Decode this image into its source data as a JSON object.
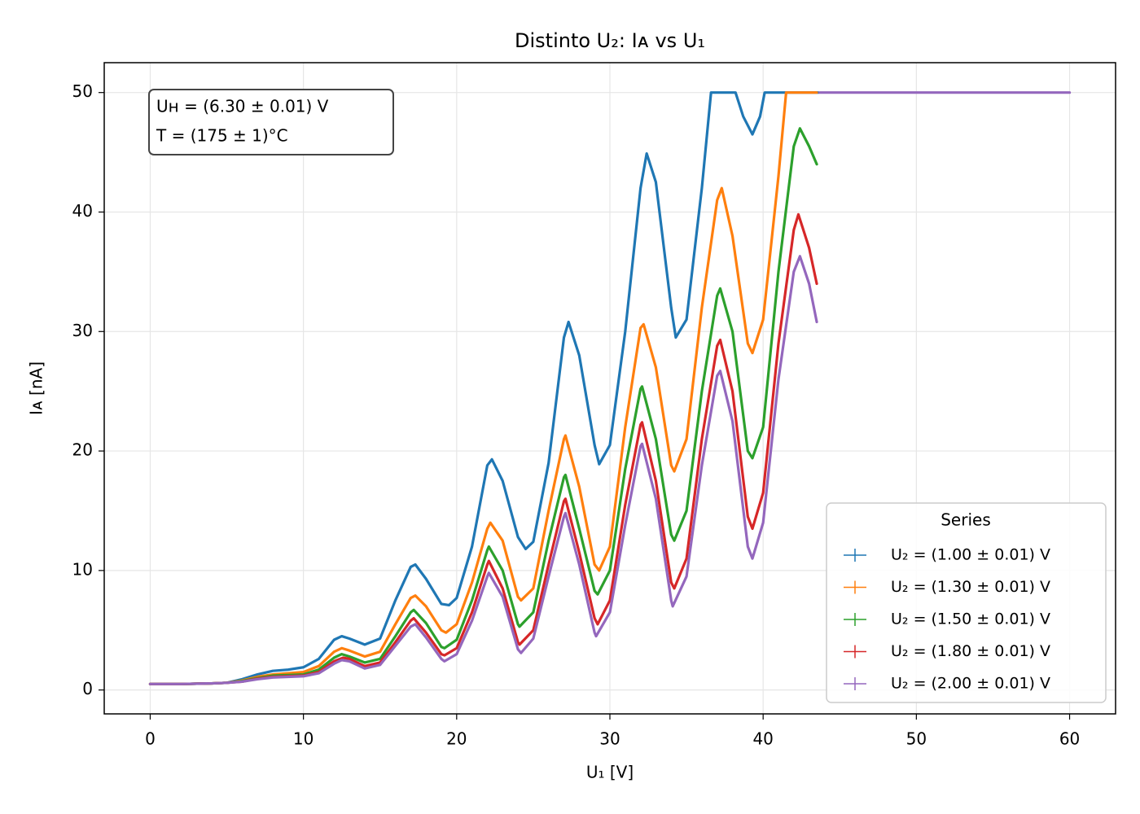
{
  "chart_data": {
    "type": "line",
    "title": "Distinto U₂: Iᴀ vs U₁",
    "x_label": "U₁ [V]",
    "y_label": "Iᴀ [nA]",
    "annotation": [
      "Uʜ = (6.30 ± 0.01) V",
      "T = (175 ± 1)°C"
    ],
    "legend_title": "Series",
    "legend_position": "lower right",
    "grid": true,
    "xlim": [
      -3,
      63
    ],
    "ylim": [
      -2,
      52.5
    ],
    "xticks": [
      0,
      10,
      20,
      30,
      40,
      50,
      60
    ],
    "yticks": [
      0,
      10,
      20,
      30,
      40,
      50
    ],
    "series": [
      {
        "name": "U₂ = (1.00 ± 0.01) V",
        "color": "#1f77b4",
        "x": [
          0,
          2,
          4,
          5,
          6,
          7,
          8,
          9,
          10,
          11,
          12,
          12.5,
          13,
          14,
          15,
          16,
          17,
          17.3,
          18,
          19,
          19.5,
          20,
          21,
          22,
          22.3,
          23,
          24,
          24.5,
          25,
          26,
          27,
          27.3,
          28,
          29,
          29.3,
          30,
          31,
          32,
          32.4,
          33,
          34,
          34.3,
          35,
          36,
          36.6,
          38.2,
          38.7,
          39.3,
          39.8,
          40.1,
          43.6
        ],
        "values": [
          0.5,
          0.5,
          0.55,
          0.6,
          0.9,
          1.3,
          1.6,
          1.7,
          1.9,
          2.6,
          4.2,
          4.5,
          4.3,
          3.8,
          4.3,
          7.5,
          10.3,
          10.5,
          9.3,
          7.2,
          7.1,
          7.7,
          12,
          18.8,
          19.3,
          17.5,
          12.8,
          11.8,
          12.4,
          19,
          29.5,
          30.8,
          28,
          20.5,
          18.9,
          20.5,
          30,
          42,
          44.9,
          42.5,
          32,
          29.5,
          31,
          42,
          50,
          50,
          48,
          46.5,
          48,
          50,
          50
        ]
      },
      {
        "name": "U₂ = (1.30 ± 0.01) V",
        "color": "#ff7f0e",
        "x": [
          0,
          2,
          4,
          5,
          6,
          7,
          8,
          9,
          10,
          11,
          12,
          12.5,
          13,
          14,
          15,
          16,
          17,
          17.3,
          18,
          19,
          19.3,
          20,
          21,
          22,
          22.2,
          23,
          24,
          24.2,
          25,
          26,
          27,
          27.1,
          28,
          29,
          29.3,
          30,
          31,
          32,
          32.2,
          33,
          34,
          34.2,
          35,
          36,
          37,
          37.3,
          38,
          39,
          39.3,
          40,
          41,
          41.5,
          43.5
        ],
        "values": [
          0.5,
          0.5,
          0.55,
          0.6,
          0.8,
          1.1,
          1.3,
          1.4,
          1.5,
          2,
          3.2,
          3.5,
          3.3,
          2.8,
          3.2,
          5.5,
          7.7,
          7.9,
          7,
          5,
          4.8,
          5.5,
          9,
          13.5,
          14,
          12.5,
          7.8,
          7.5,
          8.5,
          15,
          21,
          21.3,
          17,
          10.5,
          10,
          12,
          22,
          30.3,
          30.6,
          27,
          18.8,
          18.3,
          21,
          32,
          41,
          42,
          38,
          29,
          28.2,
          31,
          43,
          50,
          50
        ]
      },
      {
        "name": "U₂ = (1.50 ± 0.01) V",
        "color": "#2ca02c",
        "x": [
          0,
          2,
          4,
          5,
          6,
          7,
          8,
          9,
          10,
          11,
          12,
          12.5,
          13,
          14,
          15,
          16,
          17,
          17.2,
          18,
          19,
          19.2,
          20,
          21,
          22,
          22.1,
          23,
          24,
          24.1,
          25,
          26,
          27,
          27.1,
          28,
          29,
          29.2,
          30,
          31,
          32,
          32.1,
          33,
          34,
          34.2,
          35,
          36,
          37,
          37.2,
          38,
          39,
          39.3,
          40,
          41,
          42,
          42.4,
          43,
          43.5
        ],
        "values": [
          0.5,
          0.5,
          0.55,
          0.6,
          0.75,
          1,
          1.2,
          1.25,
          1.3,
          1.7,
          2.7,
          3,
          2.8,
          2.3,
          2.6,
          4.5,
          6.5,
          6.7,
          5.6,
          3.6,
          3.5,
          4.2,
          7.5,
          11.7,
          12,
          10,
          5.5,
          5.3,
          6.5,
          12.5,
          17.8,
          18,
          13.5,
          8.3,
          8,
          10,
          18.5,
          25.2,
          25.4,
          21,
          13,
          12.5,
          15,
          25,
          33,
          33.6,
          30,
          20,
          19.4,
          22,
          35,
          45.5,
          47,
          45.5,
          44
        ]
      },
      {
        "name": "U₂ = (1.80 ± 0.01) V",
        "color": "#d62728",
        "x": [
          0,
          2,
          4,
          5,
          6,
          7,
          8,
          9,
          10,
          11,
          12,
          12.6,
          13,
          14,
          15,
          16,
          17,
          17.2,
          18,
          19,
          19.2,
          20,
          21,
          22,
          22.1,
          23,
          24,
          24.1,
          25,
          26,
          27,
          27.1,
          28,
          29,
          29.2,
          30,
          31,
          32,
          32.1,
          33,
          34,
          34.2,
          35,
          36,
          37,
          37.2,
          38,
          39,
          39.3,
          40,
          41,
          42,
          42.3,
          43,
          43.5
        ],
        "values": [
          0.5,
          0.5,
          0.55,
          0.6,
          0.7,
          0.95,
          1.1,
          1.15,
          1.2,
          1.5,
          2.4,
          2.7,
          2.6,
          2,
          2.3,
          4,
          5.8,
          6,
          4.8,
          3,
          2.9,
          3.5,
          6.5,
          10.5,
          10.8,
          8.5,
          4,
          3.8,
          5,
          10.5,
          15.8,
          16,
          11.5,
          6,
          5.5,
          7.5,
          15.5,
          22.2,
          22.4,
          17.5,
          9,
          8.5,
          11,
          21,
          28.8,
          29.3,
          25,
          14.5,
          13.5,
          16.5,
          29,
          38.5,
          39.8,
          37,
          34
        ]
      },
      {
        "name": "U₂ = (2.00 ± 0.01) V",
        "color": "#9467bd",
        "x": [
          0,
          2,
          4,
          5,
          6,
          7,
          8,
          9,
          10,
          11,
          12,
          12.5,
          13,
          14,
          15,
          16,
          17,
          17.3,
          18,
          19,
          19.2,
          20,
          21,
          22,
          22.1,
          23,
          24,
          24.2,
          25,
          26,
          27,
          27.1,
          28,
          29,
          29.1,
          30,
          31,
          32,
          32.1,
          33,
          34,
          34.1,
          35,
          36,
          37,
          37.2,
          38,
          39,
          39.3,
          40,
          41,
          42,
          42.4,
          43,
          43.5,
          43.6,
          43.7,
          60
        ],
        "values": [
          0.5,
          0.5,
          0.55,
          0.6,
          0.7,
          0.9,
          1.05,
          1.1,
          1.15,
          1.4,
          2.2,
          2.5,
          2.4,
          1.8,
          2.1,
          3.7,
          5.3,
          5.5,
          4.4,
          2.6,
          2.4,
          3,
          5.8,
          9.5,
          9.8,
          7.8,
          3.4,
          3.1,
          4.3,
          9.5,
          14.5,
          14.8,
          10.5,
          4.8,
          4.5,
          6.5,
          13.8,
          20.4,
          20.6,
          16,
          7.5,
          7,
          9.5,
          18.8,
          26.3,
          26.7,
          22.5,
          12,
          11,
          14,
          26,
          35,
          36.3,
          34,
          30.8,
          null,
          50,
          50
        ]
      }
    ]
  }
}
